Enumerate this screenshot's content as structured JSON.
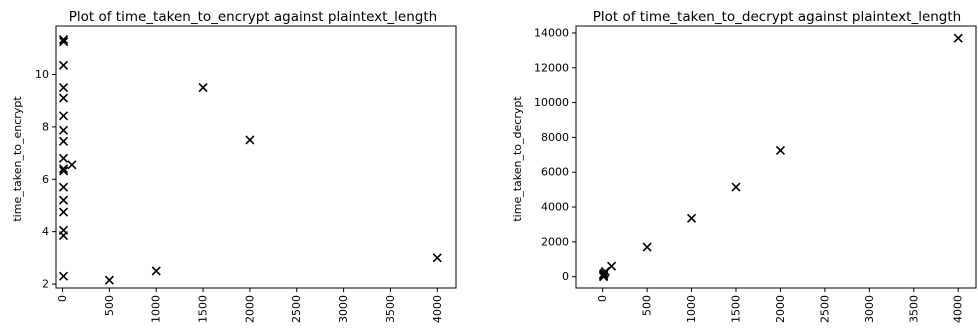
{
  "chart_data": [
    {
      "type": "scatter",
      "title": "Plot of time_taken_to_encrypt against plaintext_length",
      "xlabel": "",
      "ylabel": "time_taken_to_encrypt",
      "xlim": [
        -70,
        4200
      ],
      "ylim": [
        1.85,
        11.85
      ],
      "xticks": [
        "0",
        "500",
        "1000",
        "1500",
        "2000",
        "2500",
        "3000",
        "3500",
        "4000"
      ],
      "xtick_values": [
        0,
        500,
        1000,
        1500,
        2000,
        2500,
        3000,
        3500,
        4000
      ],
      "yticks": [
        "2",
        "4",
        "6",
        "8",
        "10"
      ],
      "ytick_values": [
        2,
        4,
        6,
        8,
        10
      ],
      "marker": "x",
      "marker_color": "#000000",
      "grid": false,
      "points": [
        {
          "x": 10,
          "y": 11.33
        },
        {
          "x": 12,
          "y": 11.25
        },
        {
          "x": 10,
          "y": 10.35
        },
        {
          "x": 10,
          "y": 9.5
        },
        {
          "x": 10,
          "y": 9.1
        },
        {
          "x": 10,
          "y": 8.42
        },
        {
          "x": 10,
          "y": 7.87
        },
        {
          "x": 10,
          "y": 7.45
        },
        {
          "x": 10,
          "y": 6.8
        },
        {
          "x": 10,
          "y": 6.4
        },
        {
          "x": 12,
          "y": 6.32
        },
        {
          "x": 100,
          "y": 6.55
        },
        {
          "x": 10,
          "y": 5.7
        },
        {
          "x": 10,
          "y": 5.2
        },
        {
          "x": 10,
          "y": 4.75
        },
        {
          "x": 10,
          "y": 4.05
        },
        {
          "x": 10,
          "y": 3.85
        },
        {
          "x": 10,
          "y": 2.3
        },
        {
          "x": 500,
          "y": 2.15
        },
        {
          "x": 1000,
          "y": 2.5
        },
        {
          "x": 1500,
          "y": 9.5
        },
        {
          "x": 2000,
          "y": 7.5
        },
        {
          "x": 4000,
          "y": 3.0
        }
      ]
    },
    {
      "type": "scatter",
      "title": "Plot of time_taken_to_decrypt against plaintext_length",
      "xlabel": "",
      "ylabel": "time_taken_to_decrypt",
      "xlim": [
        -300,
        4200
      ],
      "ylim": [
        -650,
        14400
      ],
      "xticks": [
        "0",
        "500",
        "1000",
        "1500",
        "2000",
        "2500",
        "3000",
        "3500",
        "4000"
      ],
      "xtick_values": [
        0,
        500,
        1000,
        1500,
        2000,
        2500,
        3000,
        3500,
        4000
      ],
      "yticks": [
        "0",
        "2000",
        "4000",
        "6000",
        "8000",
        "10000",
        "12000",
        "14000"
      ],
      "ytick_values": [
        0,
        2000,
        4000,
        6000,
        8000,
        10000,
        12000,
        14000
      ],
      "marker": "x",
      "marker_color": "#000000",
      "grid": false,
      "points": [
        {
          "x": 10,
          "y": 0
        },
        {
          "x": 10,
          "y": 50
        },
        {
          "x": 10,
          "y": 100
        },
        {
          "x": 10,
          "y": 150
        },
        {
          "x": 20,
          "y": 200
        },
        {
          "x": 30,
          "y": 300
        },
        {
          "x": 100,
          "y": 600
        },
        {
          "x": 500,
          "y": 1700
        },
        {
          "x": 1000,
          "y": 3350
        },
        {
          "x": 1500,
          "y": 5150
        },
        {
          "x": 2000,
          "y": 7250
        },
        {
          "x": 4000,
          "y": 13700
        }
      ]
    }
  ]
}
